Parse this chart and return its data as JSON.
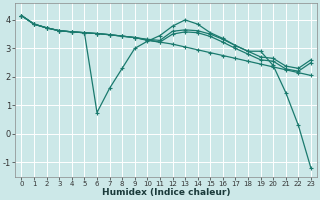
{
  "title": "",
  "xlabel": "Humidex (Indice chaleur)",
  "background_color": "#cce8e8",
  "grid_color": "#ffffff",
  "line_color": "#1a7a6e",
  "xlim": [
    -0.5,
    23.5
  ],
  "ylim": [
    -1.5,
    4.6
  ],
  "xticks": [
    0,
    1,
    2,
    3,
    4,
    5,
    6,
    7,
    8,
    9,
    10,
    11,
    12,
    13,
    14,
    15,
    16,
    17,
    18,
    19,
    20,
    21,
    22,
    23
  ],
  "yticks": [
    -1,
    0,
    1,
    2,
    3,
    4
  ],
  "lines": [
    {
      "x": [
        0,
        1,
        2,
        3,
        4,
        5,
        6,
        7,
        8,
        9,
        10,
        11,
        12,
        13,
        14,
        15,
        16,
        17,
        18,
        19,
        20,
        21,
        22,
        23
      ],
      "y": [
        4.15,
        3.85,
        3.72,
        3.62,
        3.58,
        3.55,
        0.75,
        1.6,
        2.3,
        3.0,
        3.25,
        3.45,
        3.78,
        4.0,
        3.85,
        3.55,
        3.35,
        3.1,
        2.9,
        2.9,
        2.4,
        1.45,
        0.3,
        -1.2
      ]
    },
    {
      "x": [
        0,
        1,
        2,
        3,
        4,
        5,
        6,
        7,
        8,
        9,
        10,
        11,
        12,
        13,
        14,
        15,
        16,
        17,
        18,
        19,
        20,
        21,
        22,
        23
      ],
      "y": [
        4.15,
        3.85,
        3.72,
        3.62,
        3.58,
        3.55,
        3.52,
        3.48,
        3.43,
        3.38,
        3.32,
        3.28,
        3.6,
        3.65,
        3.62,
        3.5,
        3.32,
        3.1,
        2.9,
        2.7,
        2.65,
        2.38,
        2.3,
        2.6
      ]
    },
    {
      "x": [
        0,
        1,
        2,
        3,
        4,
        5,
        6,
        7,
        8,
        9,
        10,
        11,
        12,
        13,
        14,
        15,
        16,
        17,
        18,
        19,
        20,
        21,
        22,
        23
      ],
      "y": [
        4.15,
        3.85,
        3.72,
        3.62,
        3.58,
        3.55,
        3.52,
        3.48,
        3.43,
        3.38,
        3.28,
        3.22,
        3.5,
        3.58,
        3.55,
        3.42,
        3.22,
        3.0,
        2.8,
        2.6,
        2.55,
        2.28,
        2.2,
        2.5
      ]
    },
    {
      "x": [
        0,
        1,
        2,
        3,
        4,
        5,
        6,
        7,
        8,
        9,
        10,
        11,
        12,
        13,
        14,
        15,
        16,
        17,
        18,
        19,
        20,
        21,
        22,
        23
      ],
      "y": [
        4.15,
        3.85,
        3.72,
        3.62,
        3.58,
        3.55,
        3.52,
        3.48,
        3.43,
        3.38,
        3.3,
        3.22,
        3.15,
        3.05,
        2.95,
        2.85,
        2.75,
        2.65,
        2.55,
        2.45,
        2.35,
        2.25,
        2.15,
        2.05
      ]
    }
  ]
}
